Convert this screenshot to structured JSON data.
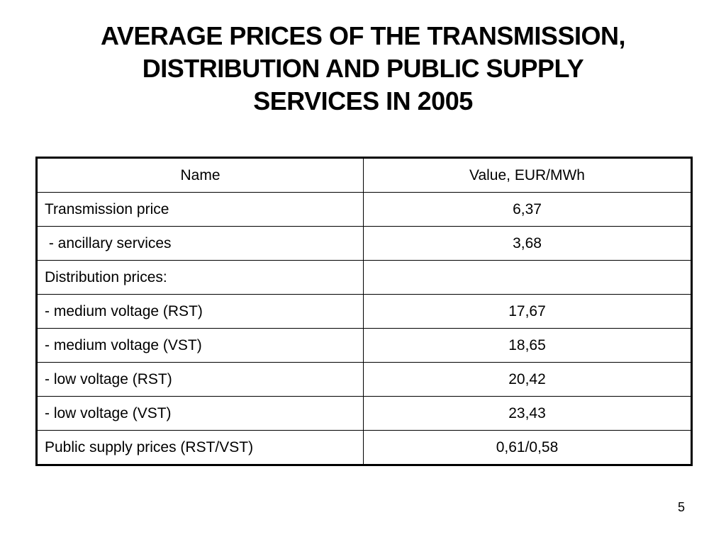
{
  "title": {
    "lines": [
      "AVERAGE PRICES OF THE TRANSMISSION,",
      "DISTRIBUTION AND PUBLIC SUPPLY",
      "SERVICES IN 2005"
    ]
  },
  "table": {
    "headers": [
      "Name",
      "Value, EUR/MWh"
    ],
    "rows": [
      {
        "name": "Transmission price",
        "value": "6,37"
      },
      {
        "name": " - ancillary services",
        "value": "3,68"
      },
      {
        "name": "Distribution prices:",
        "value": ""
      },
      {
        "name": "- medium voltage (RST)",
        "value": "17,67"
      },
      {
        "name": "- medium voltage (VST)",
        "value": "18,65"
      },
      {
        "name": "- low voltage (RST)",
        "value": "20,42"
      },
      {
        "name": "- low voltage (VST)",
        "value": "23,43"
      },
      {
        "name": "Public supply prices (RST/VST)",
        "value": "0,61/0,58"
      }
    ]
  },
  "page_number": "5"
}
